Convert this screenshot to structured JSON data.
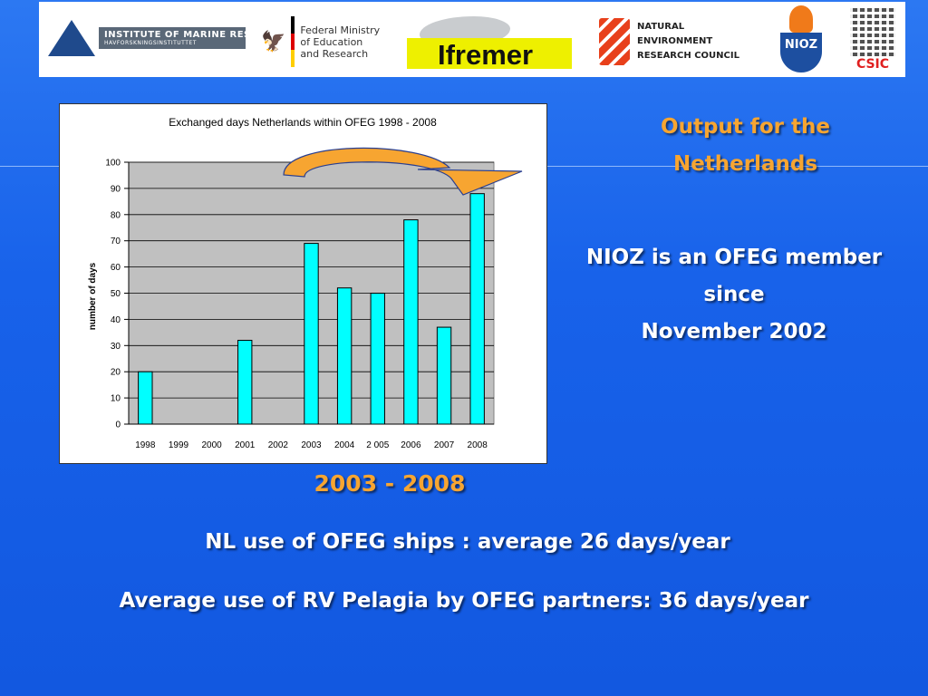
{
  "logos": {
    "imr": {
      "line1": "INSTITUTE OF MARINE RESEARCH",
      "line2": "HAVFORSKNINGSINSTITUTTET"
    },
    "bmbf": {
      "lines": [
        "Federal Ministry",
        "of Education",
        "and Research"
      ]
    },
    "ifremer": {
      "text": "Ifremer"
    },
    "nerc": {
      "lines": [
        "NATURAL",
        "ENVIRONMENT",
        "RESEARCH COUNCIL"
      ]
    },
    "nioz": {
      "text": "NIOZ"
    },
    "csic": {
      "text": "CSIC"
    }
  },
  "side": {
    "output_title": "Output for the Netherlands",
    "member_lines": [
      "NIOZ is an OFEG member",
      "since",
      "November 2002"
    ]
  },
  "years_label": "2003 - 2008",
  "nl_use": "NL use of OFEG ships : average 26 days/year",
  "pelagia": "Average use of RV Pelagia by OFEG partners: 36 days/year",
  "colors": {
    "background": "#1a66ee",
    "bar_fill": "#00ffff",
    "plot_area": "#c0c0c0",
    "arrow": "#f7a531",
    "orange_text": "#f7a531"
  },
  "chart_data": {
    "type": "bar",
    "title": "Exchanged days Netherlands within OFEG 1998 - 2008",
    "xlabel": "",
    "ylabel": "number of days",
    "categories": [
      "1998",
      "1999",
      "2000",
      "2001",
      "2002",
      "2003",
      "2004",
      "2 005",
      "2006",
      "2007",
      "2008"
    ],
    "values": [
      20,
      0,
      0,
      32,
      0,
      69,
      52,
      50,
      78,
      37,
      88
    ],
    "ylim": [
      0,
      100
    ],
    "yticks": [
      0,
      10,
      20,
      30,
      40,
      50,
      60,
      70,
      80,
      90,
      100
    ],
    "grid": true,
    "legend": "none"
  }
}
